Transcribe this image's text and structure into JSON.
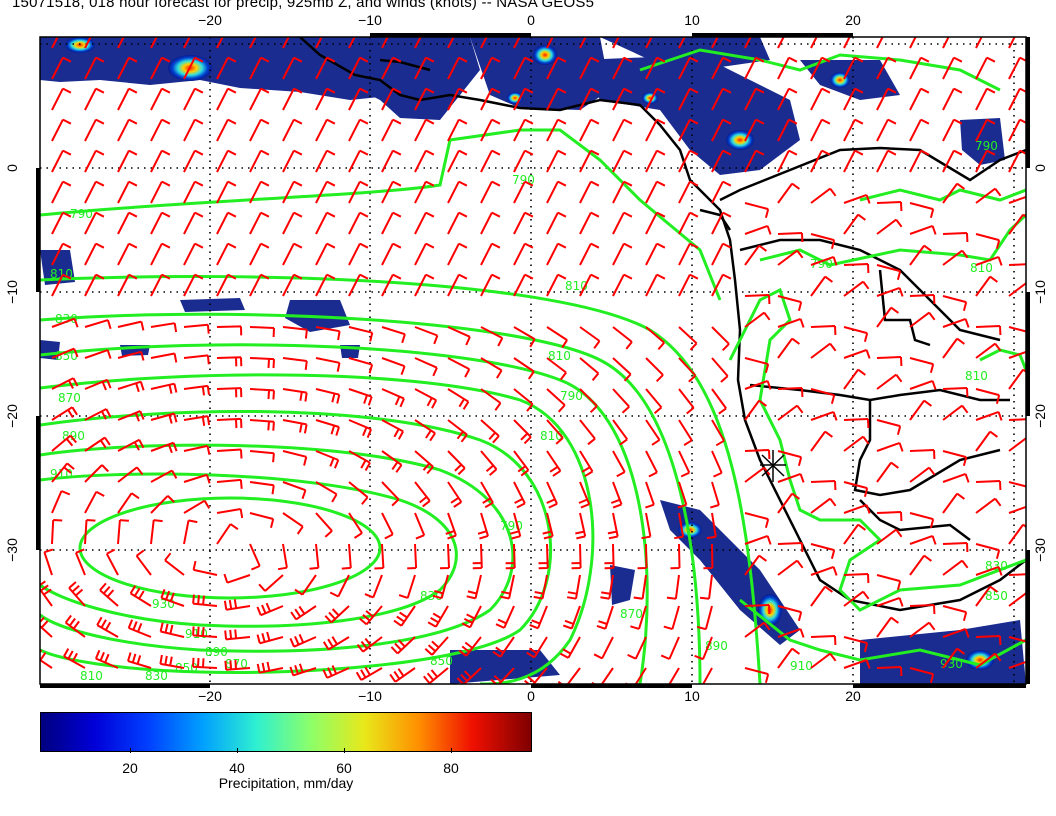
{
  "title": "15071518, 018 hour forecast for precip, 925mb Z, and winds (knots) -- NASA GEOS5",
  "map": {
    "region": "Southeast Atlantic / southwest Africa",
    "lon_ticks_top": [
      "−20",
      "−10",
      "0",
      "10",
      "20"
    ],
    "lon_ticks_bottom": [
      "−20",
      "−10",
      "0",
      "10",
      "20"
    ],
    "lat_ticks_left": [
      "0",
      "−10",
      "−20",
      "−30"
    ],
    "lat_ticks_right": [
      "0",
      "−10",
      "−20",
      "−30"
    ],
    "contour_labels": [
      "790",
      "790",
      "810",
      "810",
      "830",
      "850",
      "870",
      "890",
      "910",
      "930",
      "910",
      "890",
      "870",
      "850",
      "830",
      "810",
      "810",
      "790",
      "810",
      "790",
      "830",
      "850",
      "870",
      "890",
      "910",
      "930",
      "850",
      "830",
      "810",
      "790",
      "810",
      "790"
    ],
    "colors": {
      "contour": "#22ee22",
      "wind_barb": "#ff0000",
      "coast": "#000000",
      "grid": "#000000"
    }
  },
  "colorbar": {
    "label": "Precipitation, mm/day",
    "ticks": [
      "20",
      "40",
      "60",
      "80"
    ],
    "colormap": "jet"
  }
}
